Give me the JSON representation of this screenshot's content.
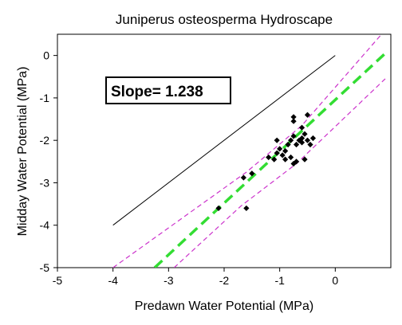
{
  "chart_data": {
    "type": "scatter",
    "title": "Juniperus osteosperma Hydroscape",
    "xlabel": "Predawn Water Potential (MPa)",
    "ylabel": "Midday Water Potential (MPa)",
    "xlim": [
      -5,
      1
    ],
    "ylim": [
      -5,
      0.5
    ],
    "xticks": [
      -5,
      -4,
      -3,
      -2,
      -1,
      0
    ],
    "yticks": [
      0,
      -1,
      -2,
      -3,
      -4,
      -5
    ],
    "xtick_labels": [
      "-5",
      "-4",
      "-3",
      "-2",
      "-1",
      "0"
    ],
    "ytick_labels": [
      "0",
      "-1",
      "-2",
      "-3",
      "-4",
      "-5"
    ],
    "grid": false,
    "annotation": "Slope= 1.238",
    "points": [
      {
        "x": -2.1,
        "y": -3.6
      },
      {
        "x": -1.6,
        "y": -3.6
      },
      {
        "x": -1.65,
        "y": -2.88
      },
      {
        "x": -1.5,
        "y": -2.78
      },
      {
        "x": -1.2,
        "y": -2.4
      },
      {
        "x": -1.1,
        "y": -2.45
      },
      {
        "x": -1.05,
        "y": -2.3
      },
      {
        "x": -1.0,
        "y": -2.2
      },
      {
        "x": -0.95,
        "y": -2.35
      },
      {
        "x": -0.9,
        "y": -2.25
      },
      {
        "x": -0.85,
        "y": -2.1
      },
      {
        "x": -0.9,
        "y": -2.45
      },
      {
        "x": -0.8,
        "y": -2.4
      },
      {
        "x": -0.75,
        "y": -2.55
      },
      {
        "x": -0.7,
        "y": -2.5
      },
      {
        "x": -0.8,
        "y": -2.0
      },
      {
        "x": -0.75,
        "y": -1.9
      },
      {
        "x": -0.7,
        "y": -2.1
      },
      {
        "x": -0.65,
        "y": -2.0
      },
      {
        "x": -0.6,
        "y": -2.05
      },
      {
        "x": -0.6,
        "y": -1.95
      },
      {
        "x": -0.55,
        "y": -1.85
      },
      {
        "x": -0.5,
        "y": -2.0
      },
      {
        "x": -0.45,
        "y": -2.1
      },
      {
        "x": -0.4,
        "y": -1.95
      },
      {
        "x": -0.75,
        "y": -1.45
      },
      {
        "x": -0.75,
        "y": -1.55
      },
      {
        "x": -0.5,
        "y": -1.4
      },
      {
        "x": -0.6,
        "y": -1.7
      },
      {
        "x": -0.55,
        "y": -2.45
      },
      {
        "x": -1.05,
        "y": -2.0
      }
    ],
    "lines": [
      {
        "role": "1:1",
        "color": "#000000",
        "style": "solid",
        "x": [
          -4,
          0
        ],
        "y": [
          -4,
          0
        ]
      },
      {
        "role": "fit",
        "color": "#33dd33",
        "style": "dashed",
        "x": [
          -3.25,
          0.9
        ],
        "y": [
          -5,
          0.05
        ]
      },
      {
        "role": "ci-upper",
        "color": "#cc33cc",
        "style": "dashed",
        "x": [
          -4,
          -1.6,
          -0.6,
          0.9
        ],
        "y": [
          -5,
          -2.75,
          -1.65,
          0.6
        ]
      },
      {
        "role": "ci-lower",
        "color": "#cc33cc",
        "style": "dashed",
        "x": [
          -2.9,
          -1.7,
          -0.7,
          0.9
        ],
        "y": [
          -5,
          -3.55,
          -2.55,
          -0.55
        ]
      }
    ],
    "colors": {
      "points": "#000000",
      "fit": "#33dd33",
      "ci": "#cc33cc",
      "one_to_one": "#000000"
    }
  }
}
